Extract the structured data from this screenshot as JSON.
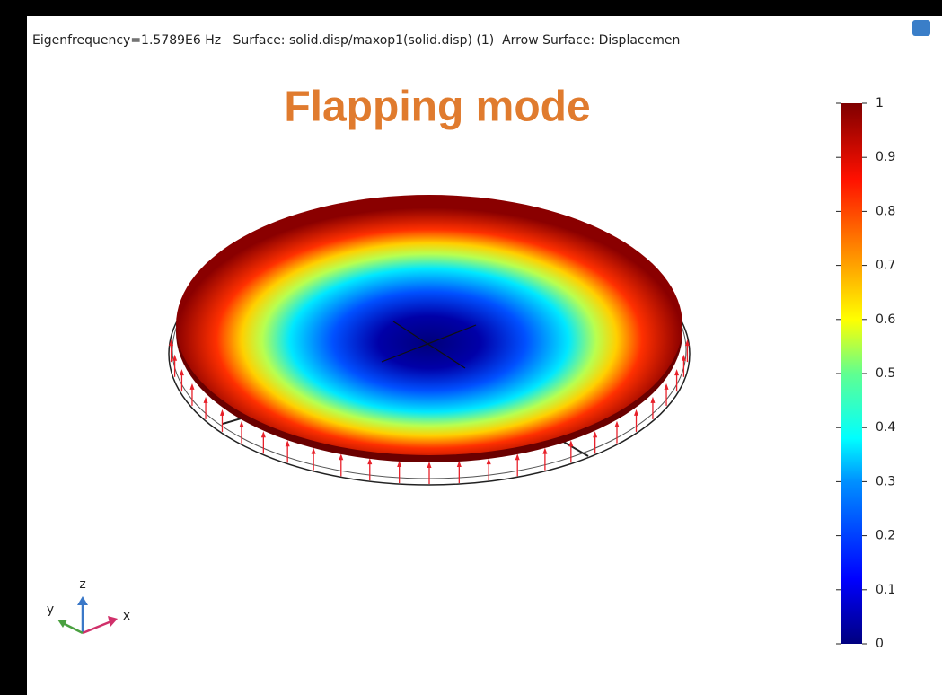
{
  "header": {
    "text": "Eigenfrequency=1.5789E6 Hz   Surface: solid.disp/maxop1(solid.disp) (1)  Arrow Surface: Displacemen"
  },
  "title": "Flapping mode",
  "colorbar": {
    "range": [
      0,
      1
    ],
    "ticks": [
      0,
      0.1,
      0.2,
      0.3,
      0.4,
      0.5,
      0.6,
      0.7,
      0.8,
      0.9,
      1
    ]
  },
  "triad": {
    "x": "x",
    "y": "y",
    "z": "z"
  }
}
